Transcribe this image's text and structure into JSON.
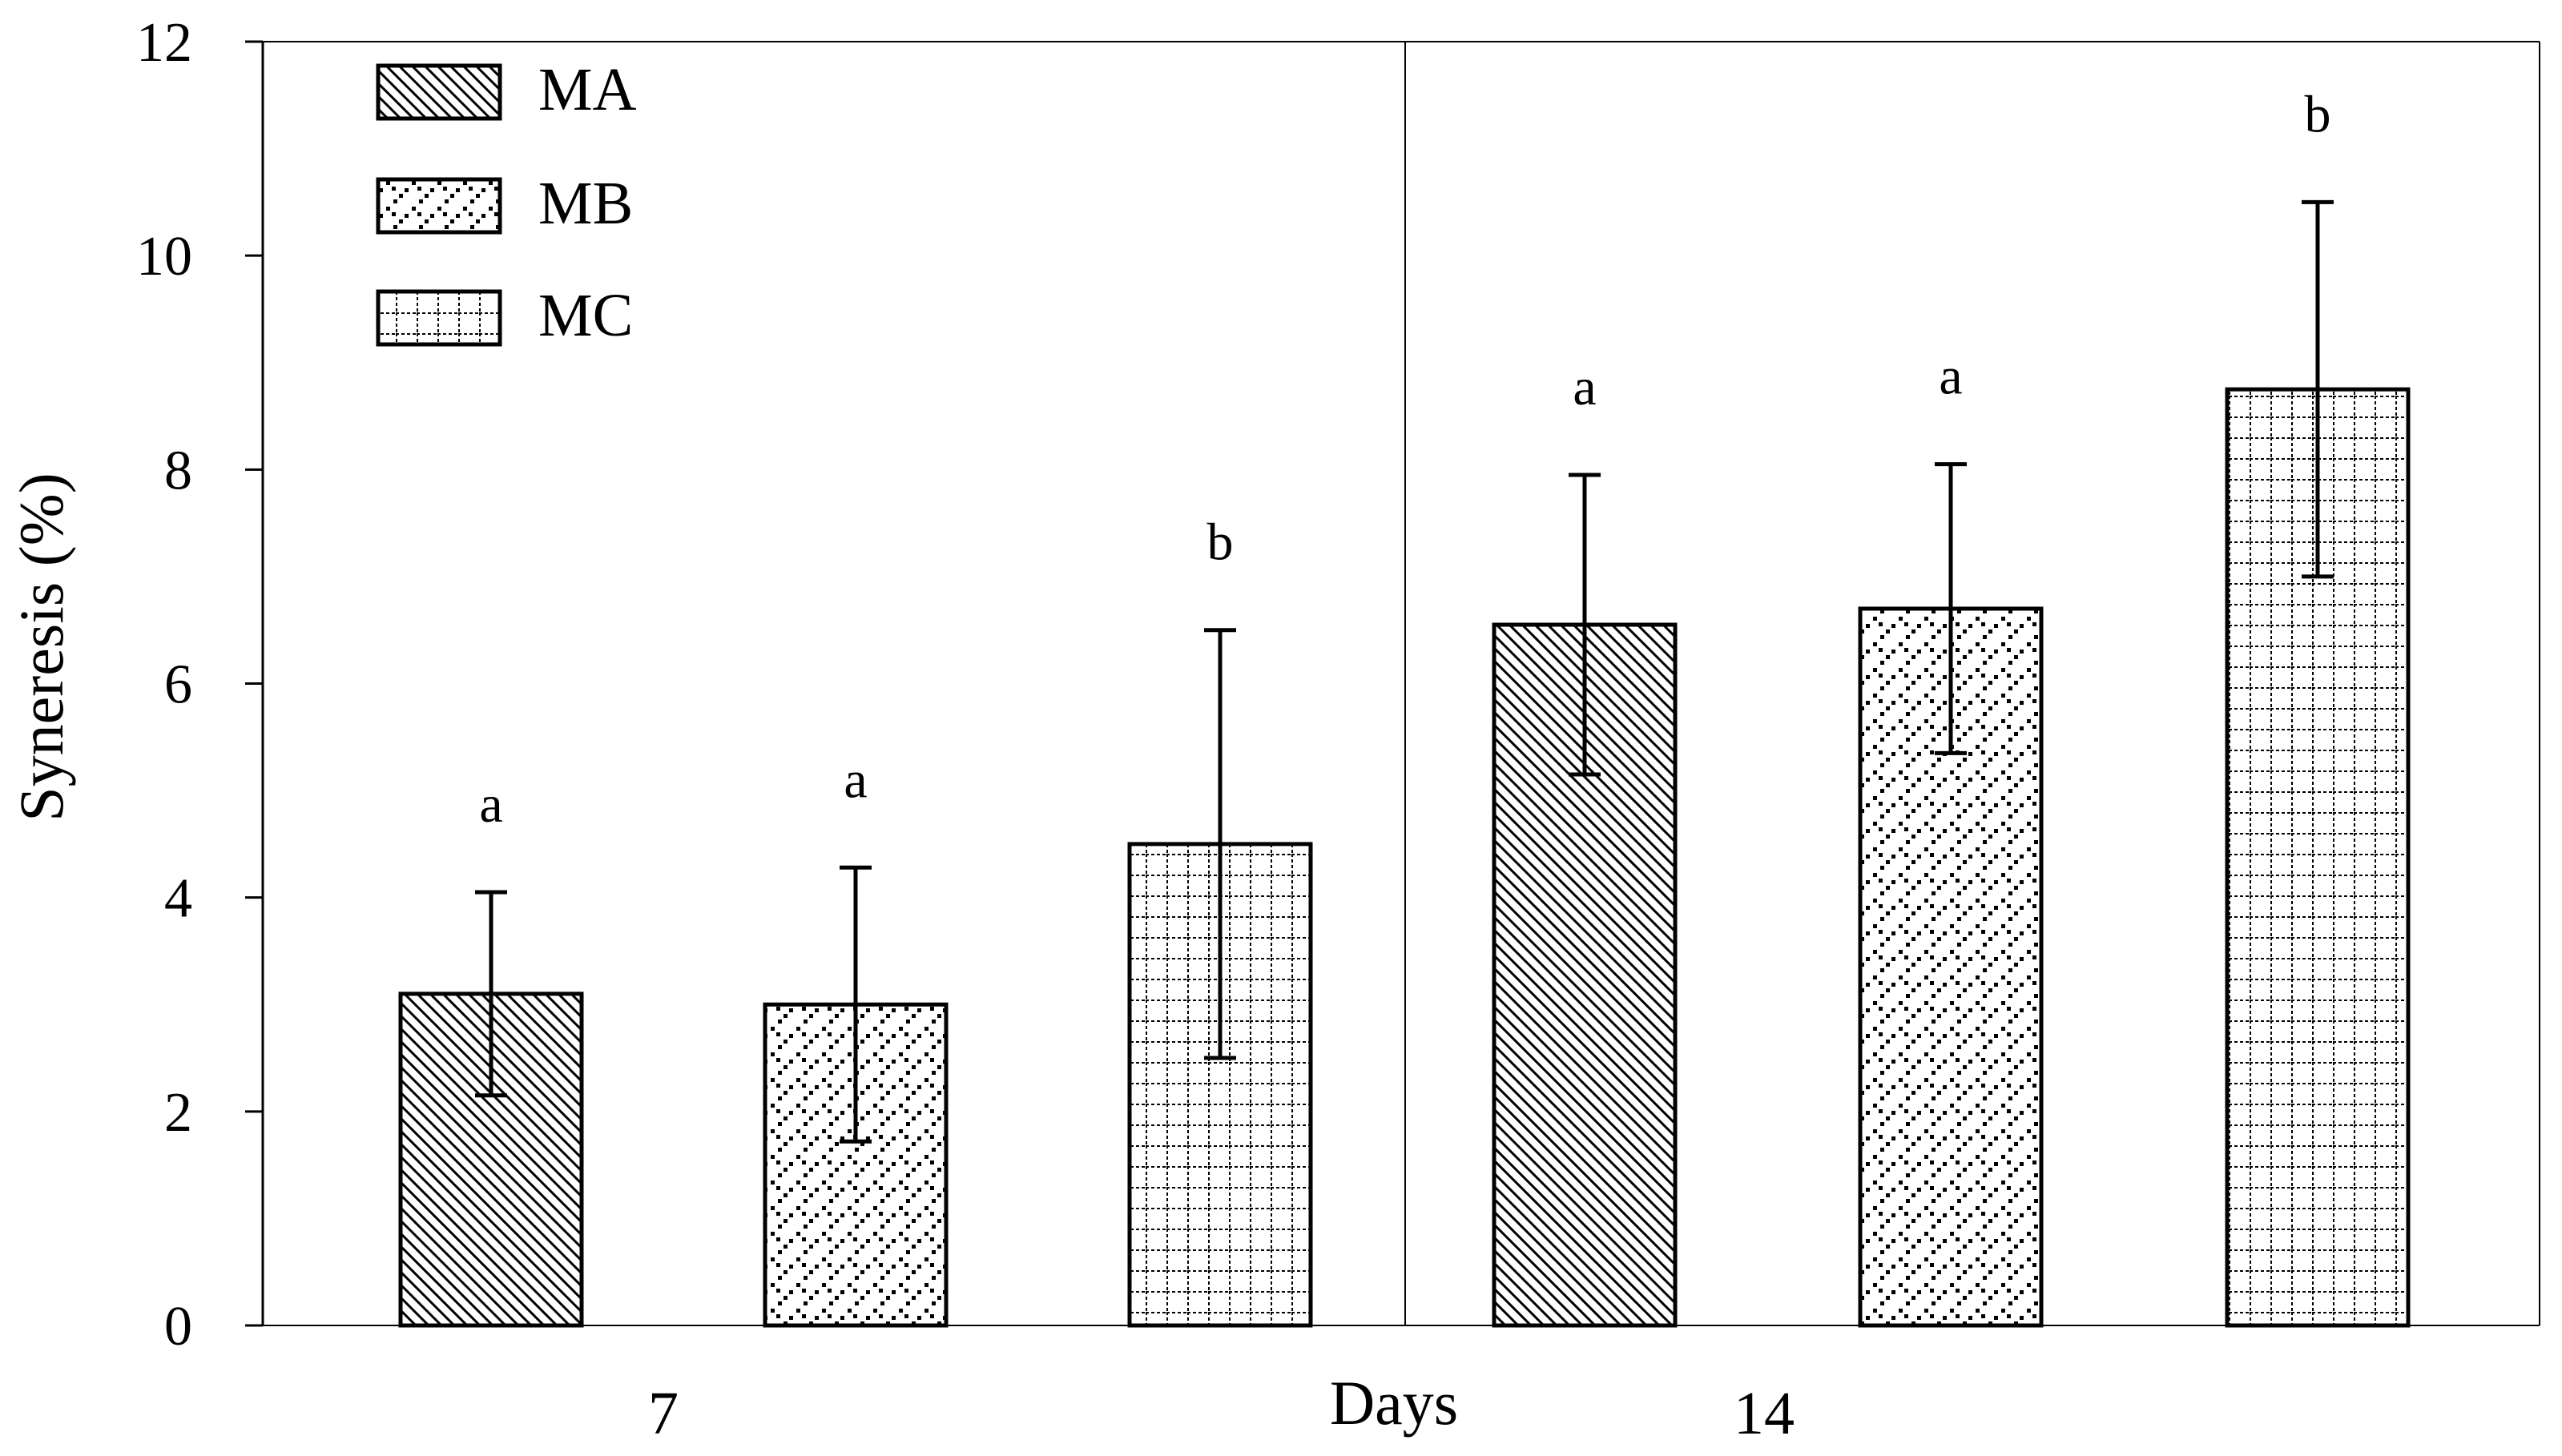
{
  "chart_data": {
    "type": "bar",
    "title": "",
    "xlabel": "Days",
    "ylabel": "Syneresis (%)",
    "ylim": [
      0,
      12
    ],
    "yticks": [
      0,
      2,
      4,
      6,
      8,
      10,
      12
    ],
    "categories": [
      "7",
      "14"
    ],
    "series": [
      {
        "name": "MA",
        "pattern": "diagonal-hatch",
        "values": [
          3.1,
          6.55
        ],
        "errors": [
          0.95,
          1.4
        ],
        "letters": [
          "a",
          "a"
        ]
      },
      {
        "name": "MB",
        "pattern": "dotted",
        "values": [
          3.0,
          6.7
        ],
        "errors": [
          1.28,
          1.35
        ],
        "letters": [
          "a",
          "a"
        ]
      },
      {
        "name": "MC",
        "pattern": "grid",
        "values": [
          4.5,
          8.75
        ],
        "errors": [
          2.0,
          1.75
        ],
        "letters": [
          "b",
          "b"
        ]
      }
    ],
    "legend": {
      "position": "top-left"
    },
    "group_divider": true
  },
  "colors": {
    "ink": "#000000",
    "background": "#ffffff"
  }
}
